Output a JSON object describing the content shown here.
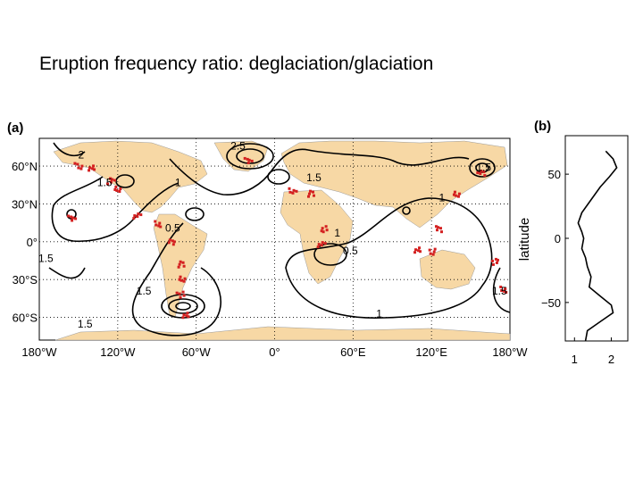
{
  "slide": {
    "title": "Eruption frequency ratio: deglaciation/glaciation"
  },
  "panel_a": {
    "label": "(a)",
    "x_ticks": [
      {
        "value": -180,
        "text": "180°W"
      },
      {
        "value": -120,
        "text": "120°W"
      },
      {
        "value": -60,
        "text": "60°W"
      },
      {
        "value": 0,
        "text": "0°"
      },
      {
        "value": 60,
        "text": "60°E"
      },
      {
        "value": 120,
        "text": "120°E"
      },
      {
        "value": 180,
        "text": "180°W"
      }
    ],
    "y_ticks": [
      {
        "value": 60,
        "text": "60°N"
      },
      {
        "value": 30,
        "text": "30°N"
      },
      {
        "value": 0,
        "text": "0°"
      },
      {
        "value": -30,
        "text": "30°S"
      },
      {
        "value": -60,
        "text": "60°S"
      }
    ],
    "contour_labels": [
      {
        "text": "2.5",
        "lon": -28,
        "lat": 73
      },
      {
        "text": "2",
        "lon": -148,
        "lat": 66
      },
      {
        "text": "1.5",
        "lon": -130,
        "lat": 44
      },
      {
        "text": "1",
        "lon": -74,
        "lat": 44
      },
      {
        "text": "1.5",
        "lon": 30,
        "lat": 48
      },
      {
        "text": "1",
        "lon": 128,
        "lat": 32
      },
      {
        "text": "0.5",
        "lon": -78,
        "lat": 8
      },
      {
        "text": "0.5",
        "lon": 58,
        "lat": -10
      },
      {
        "text": "1",
        "lon": 48,
        "lat": 4
      },
      {
        "text": "1.5",
        "lon": -100,
        "lat": -42
      },
      {
        "text": "1.5",
        "lon": -175,
        "lat": -16
      },
      {
        "text": "1.5",
        "lon": 160,
        "lat": 56
      },
      {
        "text": "1",
        "lon": 80,
        "lat": -60
      },
      {
        "text": "1.5",
        "lon": -145,
        "lat": -68
      },
      {
        "text": "1.5",
        "lon": 172,
        "lat": -42
      }
    ],
    "land_color": "#f7d8a5",
    "volcano_color": "#d42020",
    "volcano_clusters": [
      {
        "lon": -150,
        "lat": 60
      },
      {
        "lon": -140,
        "lat": 58
      },
      {
        "lon": -125,
        "lat": 48
      },
      {
        "lon": -120,
        "lat": 42
      },
      {
        "lon": -105,
        "lat": 20
      },
      {
        "lon": -90,
        "lat": 14
      },
      {
        "lon": -78,
        "lat": 0
      },
      {
        "lon": -72,
        "lat": -18
      },
      {
        "lon": -70,
        "lat": -30
      },
      {
        "lon": -72,
        "lat": -42
      },
      {
        "lon": -68,
        "lat": -58
      },
      {
        "lon": -20,
        "lat": 64
      },
      {
        "lon": 38,
        "lat": 10
      },
      {
        "lon": 36,
        "lat": -2
      },
      {
        "lon": 120,
        "lat": -8
      },
      {
        "lon": 110,
        "lat": -7
      },
      {
        "lon": 125,
        "lat": 10
      },
      {
        "lon": 140,
        "lat": 38
      },
      {
        "lon": 158,
        "lat": 54
      },
      {
        "lon": 175,
        "lat": -38
      },
      {
        "lon": -155,
        "lat": 19
      },
      {
        "lon": 28,
        "lat": 38
      },
      {
        "lon": 14,
        "lat": 40
      },
      {
        "lon": 168,
        "lat": -16
      }
    ]
  },
  "panel_b": {
    "label": "(b)",
    "ylabel": "latitude",
    "y_ticks": [
      50,
      0,
      -50
    ],
    "x_ticks": [
      1,
      2
    ],
    "ylim": [
      -80,
      80
    ],
    "xlim": [
      0.75,
      2.45
    ],
    "profile": {
      "lat": [
        68,
        62,
        55,
        48,
        40,
        30,
        20,
        12,
        5,
        0,
        -8,
        -15,
        -22,
        -30,
        -38,
        -45,
        -52,
        -58,
        -65,
        -72,
        -80
      ],
      "ratio": [
        1.85,
        2.05,
        2.15,
        1.95,
        1.7,
        1.45,
        1.2,
        1.1,
        1.2,
        1.25,
        1.2,
        1.3,
        1.35,
        1.45,
        1.4,
        1.7,
        2.0,
        2.05,
        1.7,
        1.35,
        1.3
      ]
    }
  }
}
